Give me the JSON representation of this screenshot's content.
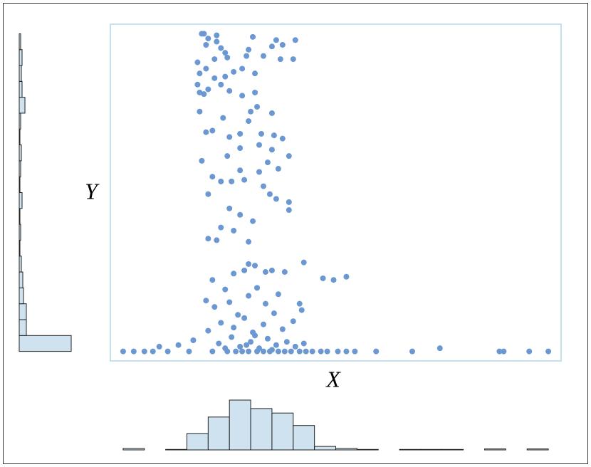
{
  "chart_data": [
    {
      "type": "scatter",
      "x_label": "X",
      "y_label": "Y",
      "color": "#6b97d2",
      "frame_color": "#c4dfee",
      "xlim": [
        -0.6,
        20.6
      ],
      "ylim": [
        -0.6,
        20.6
      ],
      "x": [
        0,
        0.5,
        1,
        1.4,
        2.1,
        3.1,
        4.2,
        4.9,
        5.3,
        5.6,
        5.9,
        6.3,
        6.6,
        6.9,
        7.3,
        7.6,
        7.9,
        8.3,
        8.6,
        8.9,
        9.3,
        9.6,
        10.1,
        10.5,
        10.9,
        11.9,
        13.6,
        17.7,
        17.9,
        19.1,
        20.0,
        2.6,
        3.3,
        4.5,
        5.1,
        5.5,
        6.0,
        6.4,
        6.8,
        7.2,
        7.7,
        8.1,
        8.5,
        4.8,
        5.8,
        6.2,
        7.0,
        1.7,
        14.9,
        4.0,
        4.6,
        5.2,
        5.7,
        6.1,
        6.6,
        7.1,
        7.5,
        8.0,
        8.4,
        4.3,
        5.0,
        5.9,
        6.7,
        7.3,
        4.8,
        6.3,
        3.9,
        8.3,
        5.4,
        4.2,
        5.2,
        5.7,
        6.2,
        6.7,
        7.0,
        7.6,
        8.5,
        9.4,
        9.9,
        10.5,
        5.9,
        4.0,
        4.4,
        4.6,
        5.2,
        5.9,
        6.1,
        5.5,
        5.0,
        7.8,
        7.8,
        4.0,
        7.2,
        4.6,
        5.1,
        5.7,
        6.6,
        6.9,
        4.2,
        6.4,
        7.3,
        6.8,
        5.5,
        3.7,
        4.9,
        5.5,
        7.0,
        7.8,
        6.4,
        7.1,
        3.9,
        4.2,
        5.0,
        5.5,
        6.5,
        7.5,
        4.7,
        5.9,
        3.6,
        6.0,
        6.3,
        7.0,
        3.5,
        3.6,
        3.8,
        4.0,
        4.6,
        5.0,
        5.6,
        6.2,
        4.3,
        4.8,
        5.2,
        3.6,
        3.9,
        5.6,
        6.2,
        3.5,
        4.3,
        4.9,
        5.8,
        6.6,
        7.4,
        8.0,
        3.9,
        4.6,
        4.8,
        5.9,
        7.0,
        7.5,
        8.1,
        4.0,
        4.4,
        6.1,
        7.2,
        3.7,
        3.8,
        4.4
      ],
      "y": [
        0,
        0,
        0,
        0,
        0,
        0,
        0,
        0,
        0,
        0,
        0,
        0,
        0,
        0,
        0,
        0,
        0,
        0,
        0,
        0,
        0,
        0,
        0,
        0,
        0,
        0,
        0,
        0,
        0,
        0,
        0,
        0.4,
        0.7,
        0.5,
        0.9,
        0.3,
        0.6,
        0.2,
        0.8,
        0.4,
        0.6,
        0.3,
        0.5,
        0.2,
        0.4,
        1.0,
        0.1,
        0.3,
        0.2,
        1.3,
        1.8,
        1.5,
        2.1,
        1.2,
        1.7,
        2.4,
        1.4,
        1.9,
        2.6,
        2.8,
        3.1,
        3.5,
        3.0,
        3.6,
        3.9,
        4.0,
        3.2,
        3.0,
        2.3,
        4.5,
        4.9,
        5.1,
        5.4,
        5.0,
        5.1,
        5.0,
        5.6,
        4.6,
        4.5,
        4.7,
        5.5,
        7.1,
        7.0,
        7.8,
        7.6,
        6.9,
        8.2,
        8.6,
        9.0,
        8.9,
        9.4,
        9.9,
        9.6,
        10.7,
        10.7,
        10.8,
        10.4,
        9.9,
        11.0,
        11.3,
        11.5,
        11.9,
        11.4,
        12.0,
        12.3,
        12.8,
        12.7,
        12.3,
        13.0,
        13.6,
        13.8,
        13.9,
        13.5,
        13.7,
        13.7,
        13.4,
        14.7,
        14.5,
        15.1,
        15.1,
        15.4,
        15.0,
        16.8,
        16.3,
        16.2,
        16.5,
        16.8,
        16.4,
        16.1,
        16.3,
        17.2,
        17.3,
        17.6,
        17.5,
        17.8,
        17.8,
        17.5,
        18.2,
        18.4,
        18.5,
        18.6,
        18.6,
        18.4,
        18.4,
        19.3,
        19.1,
        18.8,
        19.0,
        19.2,
        19.3,
        19.6,
        19.7,
        19.5,
        19.8,
        19.6,
        20.0,
        20.0,
        19.9
      ]
    },
    {
      "type": "histogram",
      "orientation": "vertical",
      "color": "#cfe2f0",
      "bins": [
        0,
        1,
        2,
        3,
        4,
        5,
        6,
        7,
        8,
        9,
        10,
        11,
        12,
        13,
        14,
        15,
        16,
        17,
        18,
        19,
        20
      ],
      "counts": [
        3,
        0,
        1,
        33,
        66,
        100,
        83,
        74,
        49,
        7,
        3,
        1,
        0,
        1,
        1,
        1,
        0,
        2,
        0,
        2
      ],
      "xlim": [
        -0.6,
        20.6
      ],
      "ylim": [
        0,
        100
      ]
    },
    {
      "type": "histogram",
      "orientation": "horizontal",
      "color": "#cfe2f0",
      "bins": [
        0,
        1,
        2,
        3,
        4,
        5,
        6,
        7,
        8,
        9,
        10,
        11,
        12,
        13,
        14,
        15,
        16,
        17,
        18,
        19,
        20
      ],
      "counts": [
        365,
        50,
        50,
        30,
        25,
        15,
        5,
        10,
        5,
        20,
        5,
        10,
        15,
        5,
        10,
        40,
        20,
        15,
        20,
        10
      ],
      "xlim": [
        0,
        365
      ],
      "ylim": [
        -0.6,
        20.6
      ]
    }
  ]
}
